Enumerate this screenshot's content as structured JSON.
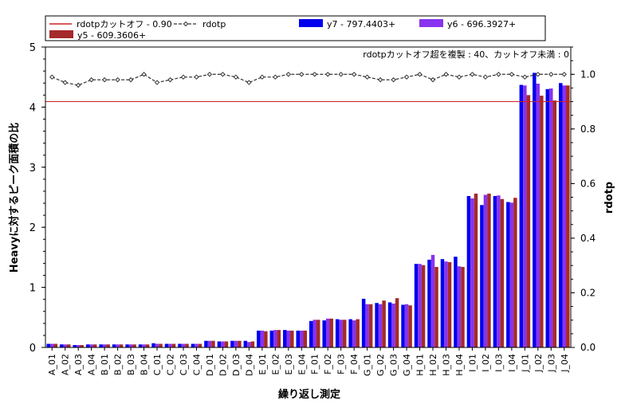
{
  "chart_data": {
    "type": "bar",
    "xlabel": "繰り返し測定",
    "ylabel": "Heavyに対するピーク面積の比",
    "y2label": "rdotp",
    "ylim": [
      0,
      5
    ],
    "y2lim": [
      0,
      1.1
    ],
    "yticks": [
      "0",
      "1",
      "2",
      "3",
      "4",
      "5"
    ],
    "y2ticks": [
      "0.0",
      "0.2",
      "0.4",
      "0.6",
      "0.8",
      "1.0"
    ],
    "grid": false,
    "legend_position": "top",
    "annotation": "rdotpカットオフ超を複製 : 40、カットオフ未満 : 0",
    "cutoff": {
      "label": "rdotpカットオフ - 0.90",
      "value": 0.9,
      "color": "#cc2222"
    },
    "categories": [
      "A_01",
      "A_02",
      "A_03",
      "A_04",
      "B_01",
      "B_02",
      "B_03",
      "B_04",
      "C_01",
      "C_02",
      "C_03",
      "C_04",
      "D_01",
      "D_02",
      "D_03",
      "D_04",
      "E_01",
      "E_02",
      "E_03",
      "E_04",
      "F_01",
      "F_02",
      "F_03",
      "F_04",
      "G_01",
      "G_02",
      "G_03",
      "G_04",
      "H_01",
      "H_02",
      "H_03",
      "H_04",
      "I_01",
      "I_02",
      "I_03",
      "I_04",
      "J_01",
      "J_02",
      "J_03",
      "J_04"
    ],
    "series": [
      {
        "name": "y7 - 797.4403+",
        "color": "#0000ee",
        "values": [
          0.06,
          0.05,
          0.04,
          0.05,
          0.05,
          0.05,
          0.05,
          0.05,
          0.07,
          0.06,
          0.06,
          0.06,
          0.11,
          0.1,
          0.11,
          0.11,
          0.28,
          0.28,
          0.29,
          0.28,
          0.44,
          0.45,
          0.47,
          0.47,
          0.81,
          0.74,
          0.75,
          0.71,
          1.39,
          1.46,
          1.47,
          1.51,
          2.52,
          2.37,
          2.52,
          2.42,
          4.37,
          4.57,
          4.3,
          4.4
        ]
      },
      {
        "name": "y6 - 696.3927+",
        "color": "#8833ee",
        "values": [
          0.06,
          0.05,
          0.04,
          0.05,
          0.05,
          0.05,
          0.05,
          0.05,
          0.06,
          0.06,
          0.06,
          0.06,
          0.11,
          0.1,
          0.11,
          0.09,
          0.28,
          0.29,
          0.28,
          0.28,
          0.46,
          0.48,
          0.46,
          0.45,
          0.72,
          0.72,
          0.73,
          0.72,
          1.39,
          1.54,
          1.43,
          1.35,
          2.48,
          2.54,
          2.53,
          2.41,
          4.36,
          4.39,
          4.31,
          4.36
        ]
      },
      {
        "name": "y5 - 609.3606+",
        "color": "#a52a2a",
        "values": [
          0.06,
          0.05,
          0.04,
          0.05,
          0.05,
          0.05,
          0.05,
          0.05,
          0.06,
          0.06,
          0.06,
          0.06,
          0.11,
          0.1,
          0.11,
          0.1,
          0.27,
          0.29,
          0.28,
          0.28,
          0.46,
          0.48,
          0.46,
          0.47,
          0.72,
          0.78,
          0.82,
          0.7,
          1.37,
          1.34,
          1.42,
          1.34,
          2.56,
          2.56,
          2.47,
          2.49,
          4.2,
          4.19,
          4.11,
          4.36
        ]
      }
    ],
    "line_series": {
      "name": "rdotp",
      "color": "#333333",
      "values": [
        0.99,
        0.97,
        0.96,
        0.98,
        0.98,
        0.98,
        0.98,
        1.0,
        0.97,
        0.98,
        0.99,
        0.99,
        1.0,
        1.0,
        0.99,
        0.97,
        0.99,
        0.99,
        1.0,
        1.0,
        1.0,
        1.0,
        1.0,
        1.0,
        0.99,
        0.98,
        0.98,
        0.99,
        1.0,
        0.98,
        1.0,
        0.99,
        1.0,
        0.99,
        1.0,
        1.0,
        0.99,
        1.0,
        1.0,
        1.0
      ]
    }
  }
}
